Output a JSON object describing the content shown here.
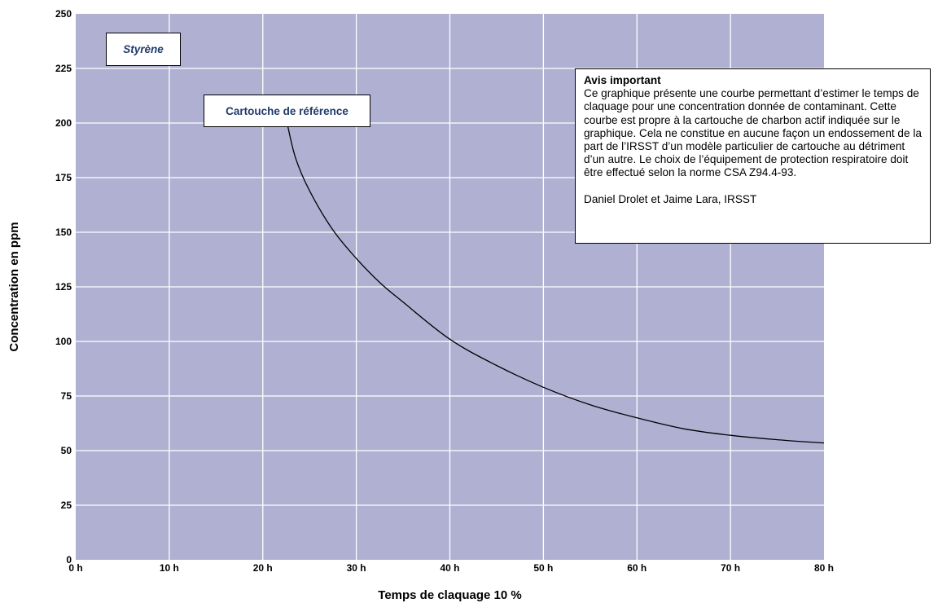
{
  "chart_data": {
    "type": "line",
    "xlabel": "Temps de claquage 10 %",
    "ylabel": "Concentration en ppm",
    "xlim": [
      0,
      80
    ],
    "ylim": [
      0,
      250
    ],
    "x_ticks": [
      0,
      10,
      20,
      30,
      40,
      50,
      60,
      70,
      80
    ],
    "x_tick_labels": [
      "0 h",
      "10 h",
      "20 h",
      "30 h",
      "40 h",
      "50 h",
      "60 h",
      "70 h",
      "80 h"
    ],
    "y_ticks": [
      0,
      25,
      50,
      75,
      100,
      125,
      150,
      175,
      200,
      225,
      250
    ],
    "y_tick_labels": [
      "0",
      "25",
      "50",
      "75",
      "100",
      "125",
      "150",
      "175",
      "200",
      "225",
      "250"
    ],
    "grid": true,
    "plot_background": "#b0b0d3",
    "grid_color": "#ffffff",
    "series": [
      {
        "color": "#000000",
        "x": [
          22.6,
          23.5,
          25,
          27.5,
          30,
          32.5,
          35,
          40,
          45,
          50,
          55,
          60,
          65,
          70,
          75,
          80
        ],
        "y": [
          200,
          184,
          169,
          151,
          138,
          127,
          118,
          101,
          89,
          79,
          71,
          65,
          60,
          57,
          55,
          53.5
        ]
      }
    ]
  },
  "labels": {
    "substance": "Styrène",
    "cartridge": "Cartouche de référence"
  },
  "notice": {
    "title": "Avis important",
    "body": "Ce graphique présente une courbe permettant d’estimer le temps de claquage pour une concentration donnée de contaminant. Cette courbe est propre à la cartouche de charbon actif indiquée sur le graphique. Cela ne constitue en aucune façon un endossement de la part de l’IRSST d’un modèle particulier de cartouche au détriment d’un autre. Le choix de l’équipement de protection respiratoire doit être effectué selon la norme CSA Z94.4-93.",
    "credit": "Daniel Drolet et Jaime Lara, IRSST"
  },
  "colors": {
    "label_text": "#1f3a6b"
  }
}
